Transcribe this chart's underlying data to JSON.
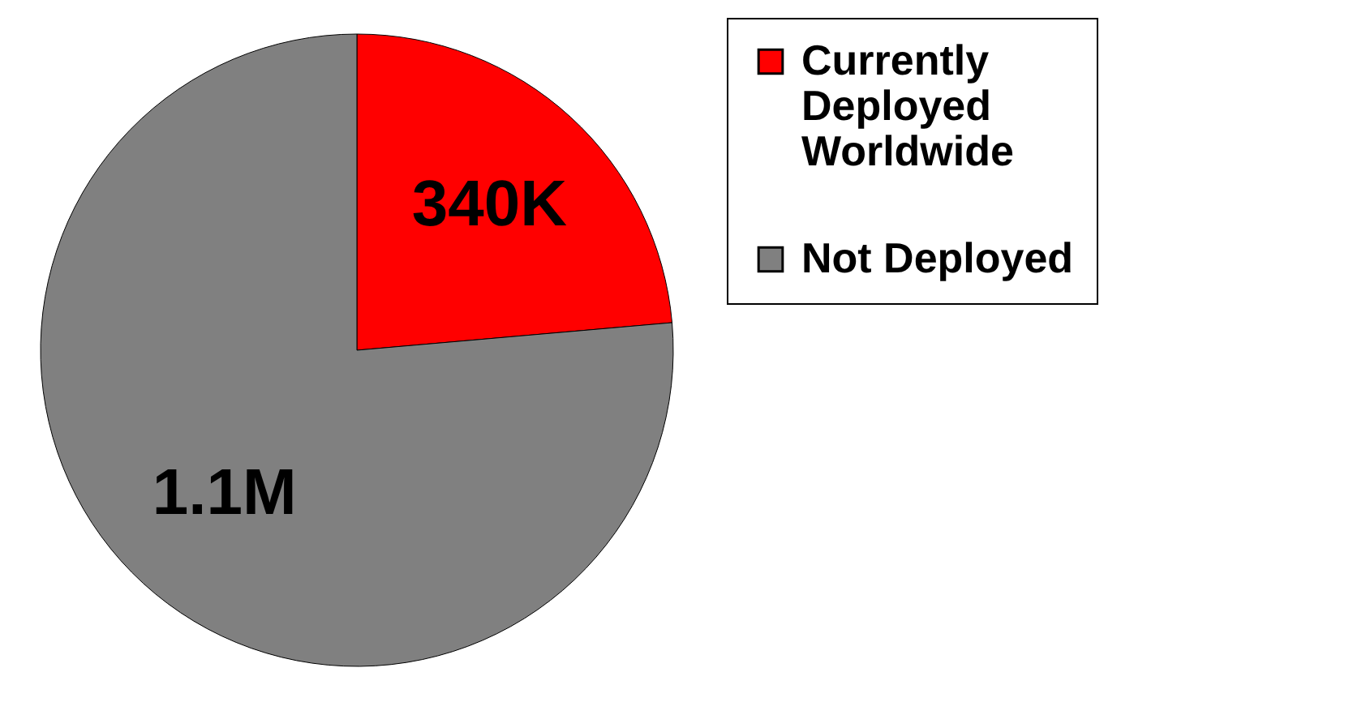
{
  "chart_data": {
    "type": "pie",
    "categories": [
      "Currently Deployed Worldwide",
      "Not Deployed"
    ],
    "values": [
      340000,
      1100000
    ],
    "value_labels": [
      "340K",
      "1.1M"
    ],
    "colors": [
      "#ff0000",
      "#808080"
    ],
    "legend": "right"
  }
}
